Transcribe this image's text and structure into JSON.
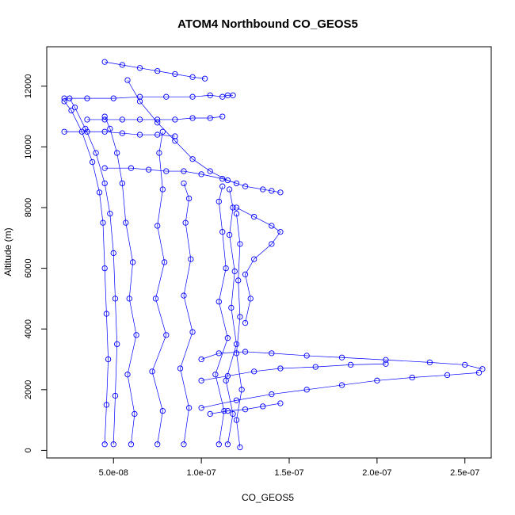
{
  "chart_data": {
    "type": "scatter",
    "title": "ATOM4 Northbound CO_GEOS5",
    "xlabel": "CO_GEOS5",
    "ylabel": "Altitude (m)",
    "xlim": [
      1.2e-08,
      2.65e-07
    ],
    "ylim": [
      -250,
      13300
    ],
    "x_ticks": [
      5e-08,
      1e-07,
      1.5e-07,
      2e-07,
      2.5e-07
    ],
    "x_tick_labels": [
      "5.0e-08",
      "1.0e-07",
      "1.5e-07",
      "2.0e-07",
      "2.5e-07"
    ],
    "y_ticks": [
      0,
      2000,
      4000,
      6000,
      8000,
      10000,
      12000
    ],
    "y_tick_labels": [
      "0",
      "2000",
      "4000",
      "6000",
      "8000",
      "10000",
      "12000"
    ],
    "grid": false,
    "legend": "none",
    "marker": "open-circle",
    "color": "#0000ff",
    "series": [
      {
        "x": [
          4.5e-08,
          4.6e-08,
          4.7e-08,
          4.6e-08,
          4.5e-08,
          4.4e-08,
          4.2e-08,
          3.8e-08,
          3.2e-08,
          2.6e-08,
          2.2e-08
        ],
        "y": [
          200,
          1500,
          3000,
          4500,
          6000,
          7500,
          8500,
          9500,
          10500,
          11200,
          11500
        ]
      },
      {
        "x": [
          5e-08,
          5.1e-08,
          5.2e-08,
          5.1e-08,
          5e-08,
          4.8e-08,
          4.5e-08,
          4e-08,
          3.4e-08,
          2.8e-08,
          2.5e-08
        ],
        "y": [
          200,
          1800,
          3500,
          5000,
          6500,
          7800,
          8800,
          9800,
          10600,
          11300,
          11600
        ]
      },
      {
        "x": [
          6e-08,
          6.2e-08,
          5.8e-08,
          6.3e-08,
          5.9e-08,
          6.1e-08,
          5.7e-08,
          5.5e-08,
          5.2e-08,
          4.8e-08,
          4.5e-08
        ],
        "y": [
          200,
          1200,
          2500,
          3800,
          5000,
          6200,
          7500,
          8800,
          9800,
          10600,
          11000
        ]
      },
      {
        "x": [
          7.5e-08,
          7.8e-08,
          7.2e-08,
          8e-08,
          7.4e-08,
          7.9e-08,
          7.5e-08,
          7.8e-08,
          7.6e-08,
          7.8e-08
        ],
        "y": [
          200,
          1300,
          2600,
          3800,
          5000,
          6200,
          7400,
          8600,
          9800,
          10500
        ]
      },
      {
        "x": [
          9e-08,
          9.3e-08,
          8.8e-08,
          9.5e-08,
          9e-08,
          9.4e-08,
          9.1e-08,
          9.3e-08,
          9e-08
        ],
        "y": [
          200,
          1400,
          2700,
          3900,
          5100,
          6300,
          7500,
          8300,
          8800
        ]
      },
      {
        "x": [
          1.1e-07,
          1.13e-07,
          1.08e-07,
          1.15e-07,
          1.1e-07,
          1.14e-07,
          1.12e-07,
          1.1e-07,
          1.12e-07
        ],
        "y": [
          200,
          1300,
          2500,
          3700,
          4900,
          6000,
          7200,
          8200,
          8700
        ]
      },
      {
        "x": [
          1.15e-07,
          1.18e-07,
          1.14e-07,
          1.2e-07,
          1.17e-07,
          1.19e-07,
          1.16e-07,
          1.18e-07,
          1.16e-07
        ],
        "y": [
          200,
          1200,
          2300,
          3500,
          4700,
          5900,
          7100,
          8000,
          8600
        ]
      },
      {
        "x": [
          1.22e-07,
          1.2e-07,
          1.23e-07,
          1.2e-07,
          1.22e-07,
          1.21e-07,
          1.22e-07,
          1.2e-07
        ],
        "y": [
          100,
          1000,
          2000,
          3200,
          4400,
          5600,
          6800,
          7800
        ]
      },
      {
        "x": [
          5.8e-08,
          6.5e-08,
          7.5e-08,
          8.5e-08,
          9.5e-08,
          1.05e-07,
          1.15e-07,
          1.25e-07,
          1.35e-07,
          1.4e-07,
          1.45e-07
        ],
        "y": [
          12200,
          11500,
          10800,
          10200,
          9600,
          9200,
          8900,
          8700,
          8600,
          8550,
          8500
        ]
      },
      {
        "x": [
          1.2e-07,
          1.3e-07,
          1.4e-07,
          1.45e-07,
          1.4e-07,
          1.3e-07,
          1.25e-07,
          1.28e-07,
          1.25e-07
        ],
        "y": [
          8000,
          7700,
          7400,
          7200,
          6800,
          6300,
          5800,
          5000,
          4200
        ]
      },
      {
        "x": [
          1e-07,
          1.1e-07,
          1.25e-07,
          1.4e-07,
          1.6e-07,
          1.8e-07,
          2.05e-07,
          2.3e-07,
          2.5e-07,
          2.6e-07
        ],
        "y": [
          3000,
          3200,
          3250,
          3200,
          3120,
          3060,
          2980,
          2900,
          2820,
          2680
        ]
      },
      {
        "x": [
          1e-07,
          1.15e-07,
          1.3e-07,
          1.45e-07,
          1.65e-07,
          1.85e-07,
          2.05e-07
        ],
        "y": [
          2300,
          2450,
          2600,
          2700,
          2750,
          2820,
          2850
        ]
      },
      {
        "x": [
          1e-07,
          1.2e-07,
          1.4e-07,
          1.6e-07,
          1.8e-07,
          2e-07,
          2.2e-07,
          2.4e-07,
          2.58e-07
        ],
        "y": [
          1400,
          1650,
          1850,
          2000,
          2150,
          2300,
          2400,
          2480,
          2560
        ]
      },
      {
        "x": [
          1.05e-07,
          1.15e-07,
          1.25e-07,
          1.35e-07,
          1.45e-07
        ],
        "y": [
          1200,
          1300,
          1350,
          1450,
          1550
        ]
      },
      {
        "x": [
          2.2e-08,
          3.5e-08,
          5e-08,
          6.5e-08,
          8e-08,
          9.5e-08,
          1.05e-07,
          1.12e-07,
          1.15e-07,
          1.18e-07
        ],
        "y": [
          11600,
          11600,
          11600,
          11650,
          11650,
          11650,
          11700,
          11650,
          11700,
          11700
        ]
      },
      {
        "x": [
          4.5e-08,
          5.5e-08,
          6.5e-08,
          7.5e-08,
          8.5e-08,
          9.5e-08,
          1.02e-07
        ],
        "y": [
          12800,
          12700,
          12600,
          12500,
          12400,
          12300,
          12250
        ]
      },
      {
        "x": [
          3.5e-08,
          4.5e-08,
          5.5e-08,
          6.5e-08,
          7.5e-08,
          8.5e-08,
          9.5e-08,
          1.05e-07,
          1.12e-07
        ],
        "y": [
          10900,
          10900,
          10900,
          10900,
          10900,
          10900,
          10950,
          10950,
          11000
        ]
      },
      {
        "x": [
          4.5e-08,
          6e-08,
          7e-08,
          8e-08,
          9e-08,
          1e-07,
          1.12e-07,
          1.2e-07
        ],
        "y": [
          9300,
          9300,
          9250,
          9200,
          9200,
          9100,
          8950,
          8800
        ]
      },
      {
        "x": [
          2.2e-08,
          3.5e-08,
          4.5e-08,
          5.5e-08,
          6.5e-08,
          7.5e-08,
          8.5e-08
        ],
        "y": [
          10500,
          10500,
          10500,
          10450,
          10400,
          10400,
          10350
        ]
      }
    ]
  }
}
